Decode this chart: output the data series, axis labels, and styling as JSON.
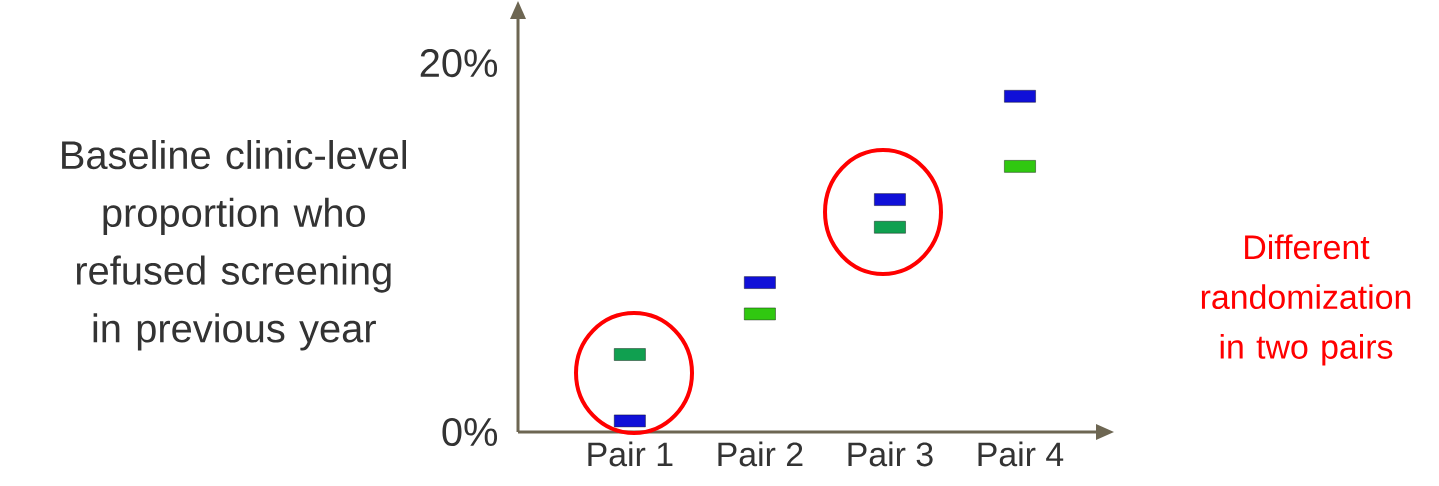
{
  "chart_data": {
    "type": "scatter",
    "marker": "square",
    "ylabel": "Baseline clinic-level proportion who refused screening in previous year",
    "categories": [
      "Pair 1",
      "Pair 2",
      "Pair 3",
      "Pair 4"
    ],
    "ylim": [
      0,
      22.5
    ],
    "yticks": [
      {
        "value": 0,
        "label": "0%"
      },
      {
        "value": 20,
        "label": "20%"
      }
    ],
    "series": [
      {
        "values": [
          0.6,
          8.1,
          12.6,
          18.2
        ],
        "colors": [
          "#1010d8",
          "#1010d8",
          "#1010d8",
          "#1010d8"
        ]
      },
      {
        "values": [
          4.2,
          6.4,
          11.1,
          14.4
        ],
        "colors": [
          "#10a050",
          "#30c810",
          "#10a050",
          "#30c810"
        ]
      }
    ],
    "annotations": [
      "Different randomization in two pairs"
    ]
  }
}
